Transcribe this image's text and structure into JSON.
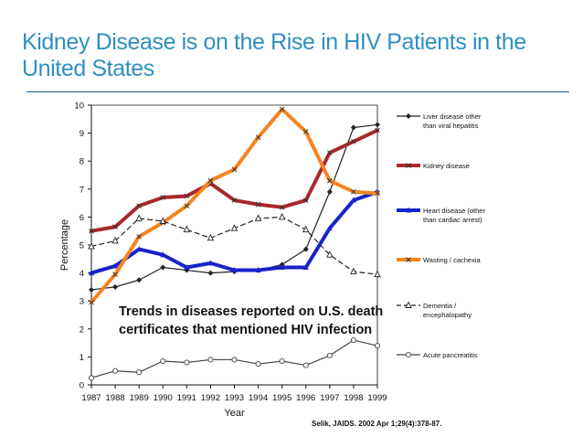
{
  "slide": {
    "title": "Kidney Disease is on the Rise in HIV Patients in the United States",
    "citation": "Selik, JAIDS. 2002 Apr 1;29(4):378-87."
  },
  "chart_data": {
    "type": "line",
    "xlabel": "Year",
    "ylabel": "Percentage",
    "ylim": [
      0,
      10
    ],
    "yticks": [
      0,
      1,
      2,
      3,
      4,
      5,
      6,
      7,
      8,
      9,
      10
    ],
    "x": [
      1987,
      1988,
      1989,
      1990,
      1991,
      1992,
      1993,
      1994,
      1995,
      1996,
      1997,
      1998,
      1999
    ],
    "annotation": [
      "Trends in diseases reported on U.S. death",
      "certificates that mentioned HIV infection"
    ],
    "legend_position": "right",
    "series": [
      {
        "name": "Liver disease other than viral hepatitis",
        "legend_lines": [
          "Liver disease other",
          "than viral hepatitis"
        ],
        "color": "#222222",
        "dash": "solid",
        "highlight": false,
        "marker": "diamond",
        "values": [
          3.4,
          3.5,
          3.75,
          4.2,
          4.1,
          4.0,
          4.05,
          4.1,
          4.3,
          4.85,
          6.9,
          9.2,
          9.3
        ]
      },
      {
        "name": "Kidney disease",
        "legend_lines": [
          "Kidney disease"
        ],
        "color": "#a8282b",
        "dash": "solid",
        "highlight": true,
        "marker": "x",
        "values": [
          5.5,
          5.65,
          6.4,
          6.7,
          6.75,
          7.2,
          6.6,
          6.45,
          6.35,
          6.6,
          8.3,
          8.7,
          9.1
        ]
      },
      {
        "name": "Heart disease (other than cardiac arrest)",
        "legend_lines": [
          "Heart disease (other",
          "than cardiac arrest)"
        ],
        "color": "#1a22c8",
        "dash": "solid",
        "highlight": true,
        "marker": "triangle",
        "values": [
          4.0,
          4.25,
          4.85,
          4.65,
          4.2,
          4.35,
          4.1,
          4.1,
          4.2,
          4.2,
          5.6,
          6.6,
          6.9
        ]
      },
      {
        "name": "Wasting / cachexia",
        "legend_lines": [
          "Wasting / cachexia"
        ],
        "color": "#f5841f",
        "dash": "solid",
        "highlight": true,
        "marker": "x",
        "values": [
          2.95,
          3.95,
          5.3,
          5.8,
          6.4,
          7.3,
          7.7,
          8.85,
          9.85,
          9.05,
          7.3,
          6.9,
          6.85
        ]
      },
      {
        "name": "Dementia / encephalopathy",
        "legend_lines": [
          "Dementia /",
          "encephalopathy"
        ],
        "color": "#222222",
        "dash": "dashed",
        "highlight": false,
        "marker": "triangle-open",
        "values": [
          4.95,
          5.15,
          5.95,
          5.85,
          5.55,
          5.25,
          5.6,
          5.95,
          6.0,
          5.55,
          4.65,
          4.05,
          3.95
        ]
      },
      {
        "name": "Acute pancreatitis",
        "legend_lines": [
          "Acute pancreatitis"
        ],
        "color": "#444444",
        "dash": "solid",
        "highlight": false,
        "marker": "circle-open",
        "values": [
          0.25,
          0.5,
          0.45,
          0.85,
          0.8,
          0.9,
          0.9,
          0.75,
          0.85,
          0.7,
          1.05,
          1.6,
          1.4
        ]
      }
    ]
  }
}
